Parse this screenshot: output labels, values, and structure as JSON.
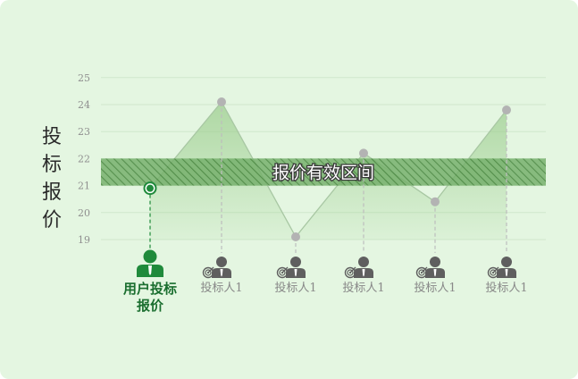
{
  "chart_data": {
    "type": "line",
    "ylabel": "投标报价",
    "ylim": [
      19,
      25
    ],
    "yticks": [
      19,
      20,
      21,
      22,
      23,
      24,
      25
    ],
    "grid": true,
    "band": {
      "label": "报价有效区间",
      "range": [
        21,
        22
      ]
    },
    "categories": [
      "用户投标报价",
      "投标人1",
      "投标人1",
      "投标人1",
      "投标人1",
      "投标人1"
    ],
    "values": [
      20.9,
      24.1,
      19.1,
      22.2,
      20.4,
      23.8
    ],
    "highlight_index": 0
  },
  "colors": {
    "card_bg": "#e4f6e1",
    "grid": "#cfe7cc",
    "tick_text": "#8f8f8f",
    "line": "#a8c7a3",
    "area_fill": "#9ccd8e",
    "band_fill": "#76b06c",
    "band_hatch": "#3f7f36",
    "point": "#b3b3b3",
    "user_green": "#1f8a3b",
    "user_text": "#1a6e2f",
    "bidder_icon": "#5f5f5f",
    "bidder_text": "#888888",
    "dash": "#bdbdbd"
  },
  "icons": {
    "user": "user-icon",
    "bidder": "bidder-with-target-icon"
  }
}
